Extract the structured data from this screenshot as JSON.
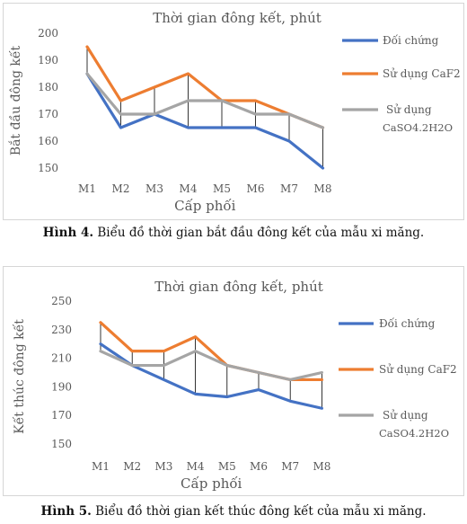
{
  "colors": {
    "doi_chung": "#4472C4",
    "caf2": "#ED7D31",
    "caso4": "#A5A5A5",
    "axis_text": "#595959",
    "drop_line": "#000000"
  },
  "chart_data": [
    {
      "type": "line",
      "title": "Thời gian đông kết, phút",
      "xlabel": "Cấp phối",
      "ylabel": "Bắt đầu đông kết",
      "categories": [
        "M1",
        "M2",
        "M3",
        "M4",
        "M5",
        "M6",
        "M7",
        "M8"
      ],
      "yticks": [
        "150",
        "160",
        "170",
        "180",
        "190",
        "200"
      ],
      "ylim": [
        150,
        200
      ],
      "grid": false,
      "drop_lines": true,
      "legend_position": "right",
      "series": [
        {
          "name": "Đối chứng",
          "color": "#4472C4",
          "values": [
            185,
            165,
            170,
            165,
            165,
            165,
            160,
            150
          ]
        },
        {
          "name": "Sử dụng CaF2",
          "color": "#ED7D31",
          "values": [
            195,
            175,
            180,
            185,
            175,
            175,
            170,
            165
          ]
        },
        {
          "name": "Sử dụng CaSO4.2H2O",
          "legend_lines": [
            "Sử dụng",
            "CaSO4.2H2O"
          ],
          "color": "#A5A5A5",
          "values": [
            185,
            170,
            170,
            175,
            175,
            170,
            170,
            165
          ]
        }
      ]
    },
    {
      "type": "line",
      "title": "Thời gian đông kết, phút",
      "xlabel": "Cấp phối",
      "ylabel": "Kết thúc đông kết",
      "categories": [
        "M1",
        "M2",
        "M3",
        "M4",
        "M5",
        "M6",
        "M7",
        "M8"
      ],
      "yticks": [
        "150",
        "170",
        "190",
        "210",
        "230",
        "250"
      ],
      "ylim": [
        150,
        250
      ],
      "grid": false,
      "drop_lines": true,
      "legend_position": "right",
      "series": [
        {
          "name": "Đối chứng",
          "color": "#4472C4",
          "values": [
            220,
            205,
            195,
            185,
            183,
            188,
            180,
            175
          ]
        },
        {
          "name": "Sử dụng CaF2",
          "color": "#ED7D31",
          "values": [
            235,
            215,
            215,
            225,
            205,
            200,
            195,
            195
          ]
        },
        {
          "name": "Sử dụng CaSO4.2H2O",
          "legend_lines": [
            "Sử dụng",
            "CaSO4.2H2O"
          ],
          "color": "#A5A5A5",
          "values": [
            215,
            205,
            205,
            215,
            205,
            200,
            195,
            200
          ]
        }
      ]
    }
  ],
  "captions": [
    {
      "label": "Hình 4.",
      "text": " Biểu đồ thời gian bắt đầu đông kết của mẫu xi măng."
    },
    {
      "label": "Hình 5.",
      "text": " Biểu đồ thời gian kết thúc đông kết của mẫu xi măng."
    }
  ]
}
